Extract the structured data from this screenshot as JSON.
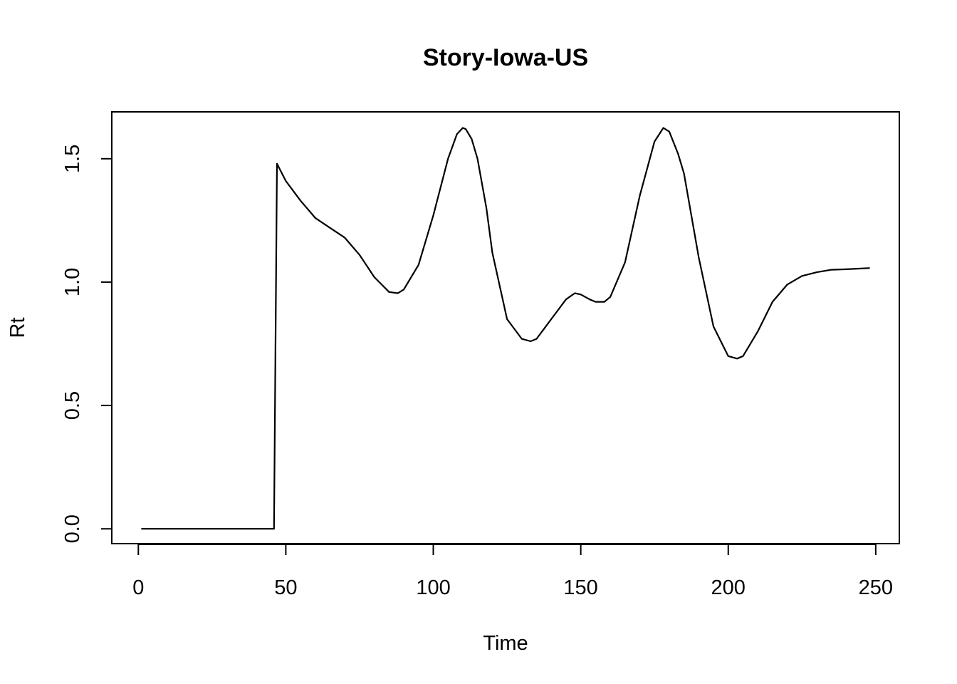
{
  "chart_data": {
    "type": "line",
    "title": "Story-Iowa-US",
    "xlabel": "Time",
    "ylabel": "Rt",
    "xlim": [
      -9,
      258
    ],
    "ylim": [
      -0.06,
      1.69
    ],
    "xticks": [
      0,
      50,
      100,
      150,
      200,
      250
    ],
    "xtick_labels": [
      "0",
      "50",
      "100",
      "150",
      "200",
      "250"
    ],
    "yticks": [
      0.0,
      0.5,
      1.0,
      1.5
    ],
    "ytick_labels": [
      "0.0",
      "0.5",
      "1.0",
      "1.5"
    ],
    "grid": false,
    "legend": "none",
    "series": [
      {
        "x": [
          1,
          10,
          20,
          30,
          40,
          46,
          47,
          50,
          55,
          60,
          65,
          70,
          75,
          80,
          85,
          88,
          90,
          95,
          100,
          105,
          108,
          110,
          111,
          113,
          115,
          118,
          120,
          125,
          130,
          133,
          135,
          140,
          145,
          148,
          150,
          153,
          155,
          158,
          160,
          165,
          170,
          175,
          178,
          180,
          183,
          185,
          190,
          195,
          200,
          203,
          205,
          210,
          215,
          220,
          225,
          230,
          235,
          240,
          245,
          248
        ],
        "y": [
          0.0,
          0.0,
          0.0,
          0.0,
          0.0,
          0.0,
          1.48,
          1.41,
          1.33,
          1.26,
          1.22,
          1.18,
          1.11,
          1.02,
          0.96,
          0.955,
          0.97,
          1.07,
          1.27,
          1.5,
          1.6,
          1.625,
          1.62,
          1.58,
          1.5,
          1.3,
          1.12,
          0.85,
          0.77,
          0.76,
          0.77,
          0.85,
          0.93,
          0.955,
          0.95,
          0.93,
          0.92,
          0.92,
          0.94,
          1.08,
          1.35,
          1.57,
          1.625,
          1.61,
          1.52,
          1.44,
          1.1,
          0.82,
          0.7,
          0.69,
          0.7,
          0.8,
          0.92,
          0.99,
          1.025,
          1.04,
          1.05,
          1.052,
          1.055,
          1.057
        ]
      }
    ]
  }
}
